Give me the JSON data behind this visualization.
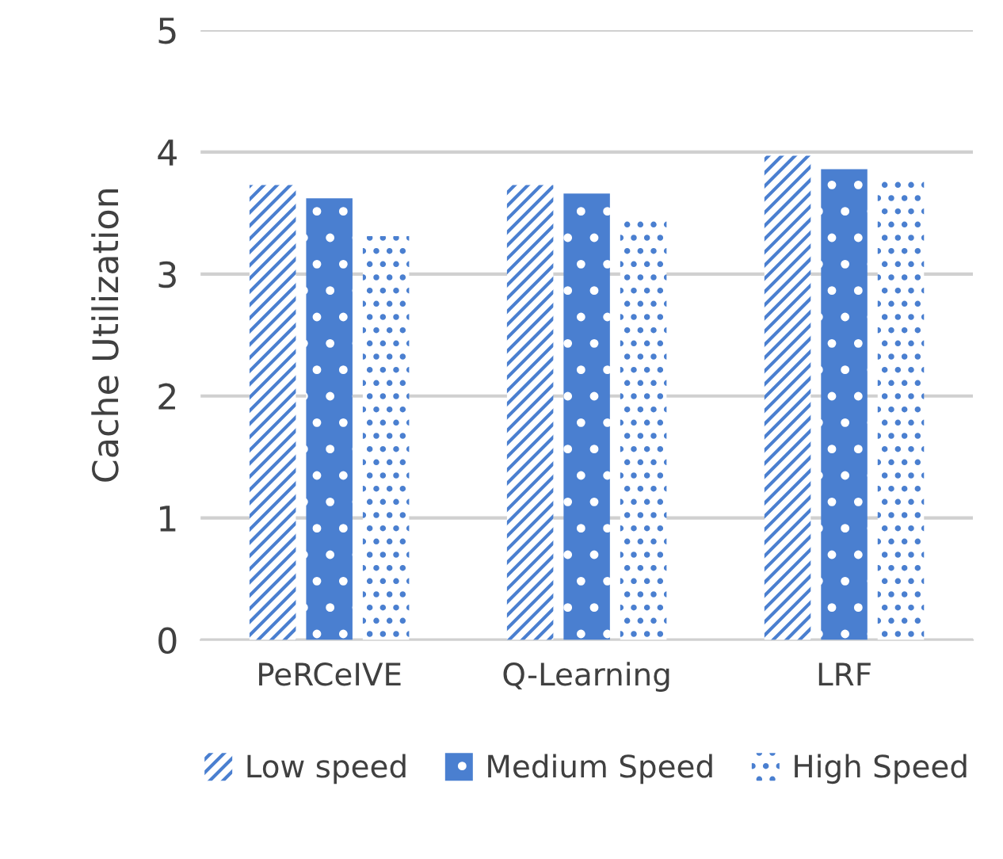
{
  "chart_data": {
    "type": "bar",
    "ylabel": "Cache Utilization",
    "categories": [
      "PeRCeIVE",
      "Q-Learning",
      "LRF"
    ],
    "series": [
      {
        "name": "Low speed",
        "color": "#4a7fd0",
        "values": [
          3.73,
          3.73,
          3.97
        ]
      },
      {
        "name": "Medium Speed",
        "color": "#4a7fd0",
        "values": [
          3.62,
          3.66,
          3.86
        ]
      },
      {
        "name": "High Speed",
        "color": "#4a7fd0",
        "values": [
          3.31,
          3.47,
          3.77
        ]
      }
    ],
    "ylim": [
      0,
      5
    ],
    "yticks": [
      0,
      1,
      2,
      3,
      4,
      5
    ],
    "grid": "y",
    "legend": "bottom"
  }
}
